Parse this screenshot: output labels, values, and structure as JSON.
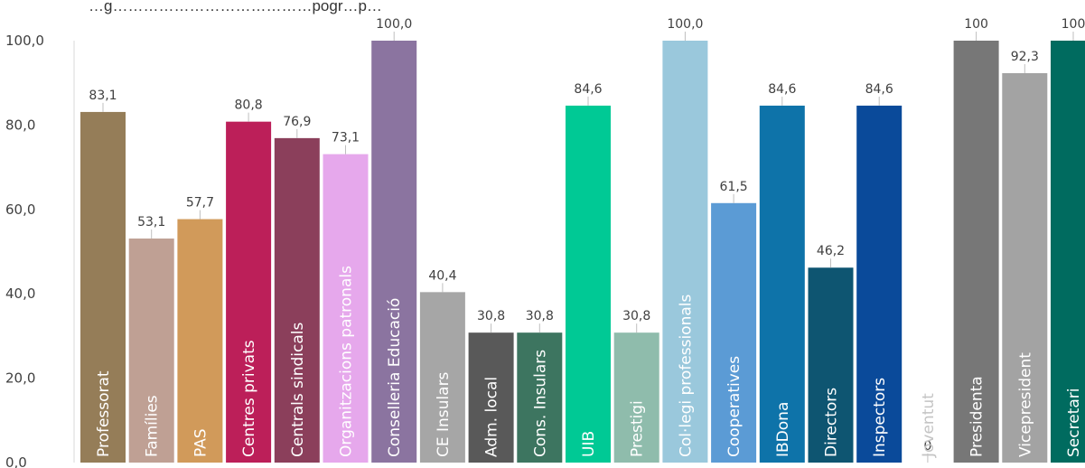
{
  "chart_data": {
    "type": "bar",
    "title": "…g…………………………………pogr…p…",
    "categories": [
      "Professorat",
      "Famílies",
      "PAS",
      "Centres privats",
      "Centrals sindicals",
      "Organitzacions patronals",
      "Conselleria Educació",
      "CE Insulars",
      "Adm. local",
      "Cons. Insulars",
      "UIB",
      "Prestigi",
      "Col·legi professionals",
      "Cooperatives",
      "IBDona",
      "Directors",
      "Inspectors",
      "Joventut",
      "Presidenta",
      "Vicepresident",
      "Secretari"
    ],
    "values": [
      83.1,
      53.1,
      57.7,
      80.8,
      76.9,
      73.1,
      100.0,
      40.4,
      30.8,
      30.8,
      84.6,
      30.8,
      100.0,
      61.5,
      84.6,
      46.2,
      84.6,
      0,
      100,
      92.3,
      100
    ],
    "value_labels": [
      "83,1",
      "53,1",
      "57,7",
      "80,8",
      "76,9",
      "73,1",
      "100,0",
      "40,4",
      "30,8",
      "30,8",
      "84,6",
      "30,8",
      "100,0",
      "61,5",
      "84,6",
      "46,2",
      "84,6",
      "0",
      "100",
      "92,3",
      "100"
    ],
    "colors": [
      "#957d58",
      "#bfa094",
      "#d19a5a",
      "#bc1f59",
      "#8b3f5b",
      "#e6a8ec",
      "#8b74a0",
      "#a6a6a6",
      "#595959",
      "#3d7560",
      "#00c995",
      "#8fbcac",
      "#9ac8dc",
      "#5b9bd5",
      "#0e73a9",
      "#0e5571",
      "#0a4a9a",
      "#f4f4f4",
      "#777777",
      "#a3a3a3",
      "#006b5f"
    ],
    "label_colors": [
      "#ffffff",
      "#ffffff",
      "#ffffff",
      "#ffffff",
      "#ffffff",
      "#ffffff",
      "#ffffff",
      "#ffffff",
      "#ffffff",
      "#ffffff",
      "#ffffff",
      "#ffffff",
      "#ffffff",
      "#ffffff",
      "#ffffff",
      "#ffffff",
      "#ffffff",
      "#c4c4c4",
      "#ffffff",
      "#ffffff",
      "#ffffff"
    ],
    "y_ticks": [
      "0,0",
      "20,0",
      "40,0",
      "60,0",
      "80,0",
      "100,0"
    ],
    "ylim": [
      0,
      100
    ],
    "grid": false,
    "legend": "none"
  }
}
